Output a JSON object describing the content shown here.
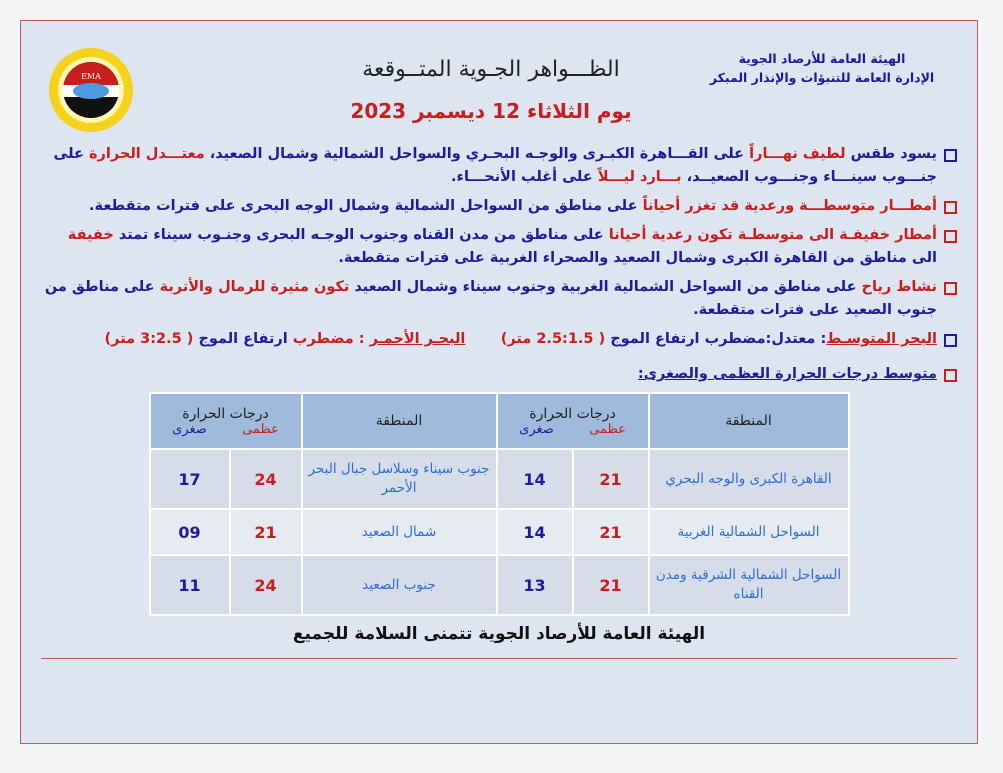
{
  "header": {
    "org_line1": "الهيئة العامة للأرصاد الجوية",
    "org_line2": "الإدارة العامة للتنبؤات والإنذار المبكر",
    "title": "الظـــواهر الجـوية المتــوقعة",
    "date": "يوم الثلاثاء 12 ديسمبر 2023",
    "logo_text": "EMA"
  },
  "colors": {
    "blue": "#1d1d9a",
    "red": "#c81e1e",
    "background": "#dde5f0",
    "table_header": "#9fbadb"
  },
  "bullets": [
    {
      "box": "blue",
      "segments": [
        {
          "t": "يسود طقس ",
          "c": "b"
        },
        {
          "t": "لطيف نهـــاراً",
          "c": "r"
        },
        {
          "t": " على القـــاهرة الكبـرى والوجـه البحـري والسواحل الشمالية وشمال الصعيد، ",
          "c": "b"
        },
        {
          "t": "معتـــدل الحرارة",
          "c": "r"
        },
        {
          "t": " على جنـــوب سينـــاء وجنـــوب الصعيــد، ",
          "c": "b"
        },
        {
          "t": "بـــارد ليـــلاً",
          "c": "r"
        },
        {
          "t": " على أغلب الأنحـــاء.",
          "c": "b"
        }
      ]
    },
    {
      "box": "red",
      "segments": [
        {
          "t": "أمطـــار متوسطـــة ورعدية قد تغزر أحياناً",
          "c": "r"
        },
        {
          "t": " على مناطق من السواحل الشمالية وشمال الوجه البحرى على فترات متقطعة.",
          "c": "b"
        }
      ]
    },
    {
      "box": "red",
      "segments": [
        {
          "t": "أمطار خفيفـة الى متوسطـة تكون رعدية أحيانا",
          "c": "r"
        },
        {
          "t": "  على مناطق من مدن القناه وجنوب الوجـه البحرى وجنـوب سيناء تمتد ",
          "c": "b"
        },
        {
          "t": "خفيفة",
          "c": "r"
        },
        {
          "t": " الى مناطق من القاهرة الكبرى وشمال الصعيد والصحراء الغربية على فترات متقطعة.",
          "c": "b"
        }
      ]
    },
    {
      "box": "red",
      "segments": [
        {
          "t": "نشاط رياح",
          "c": "r"
        },
        {
          "t": " على مناطق من السواحل الشمالية الغربية وجنوب سيناء وشمال الصعيد ",
          "c": "b"
        },
        {
          "t": "تكون مثيرة للرمال والأتربة",
          "c": "r"
        },
        {
          "t": " على مناطق من جنوب الصعيد على فترات متقطعة.",
          "c": "b"
        }
      ]
    },
    {
      "box": "blue",
      "segments": [
        {
          "t": "البحر المتوسـط",
          "c": "ru"
        },
        {
          "t": ": معتدل:مضطرب ارتفاع الموج ",
          "c": "b"
        },
        {
          "t": "( 2.5:1.5 متر)",
          "c": "r"
        },
        {
          "t": "       ",
          "c": "b"
        },
        {
          "t": "البحـر الأحمـر",
          "c": "ru"
        },
        {
          "t": " : مضطرب ",
          "c": "r"
        },
        {
          "t": "ارتفاع الموج ",
          "c": "b"
        },
        {
          "t": "( 3:2.5 متر)",
          "c": "r"
        }
      ]
    },
    {
      "box": "red",
      "segments": [
        {
          "t": "متوسط درجات الحرارة العظمى والصغرى:",
          "c": "bu"
        }
      ]
    }
  ],
  "table": {
    "region_header": "المنطقة",
    "temp_header": "درجات الحرارة",
    "max_label": "عظمى",
    "min_label": "صغرى",
    "rows": [
      {
        "r1": "القاهرة الكبرى والوجه البحري",
        "max1": "21",
        "min1": "14",
        "r2": "جنوب سيناء وسلاسل جبال البحر الأحمر",
        "max2": "24",
        "min2": "17"
      },
      {
        "r1": "السواحل الشمالية الغربية",
        "max1": "21",
        "min1": "14",
        "r2": "شمال الصعيد",
        "max2": "21",
        "min2": "09"
      },
      {
        "r1": "السواحل الشمالية الشرقية ومدن القناه",
        "max1": "21",
        "min1": "13",
        "r2": "جنوب الصعيد",
        "max2": "24",
        "min2": "11"
      }
    ]
  },
  "footer": "الهيئة العامة للأرصاد الجوية تتمنى السلامة للجميع"
}
